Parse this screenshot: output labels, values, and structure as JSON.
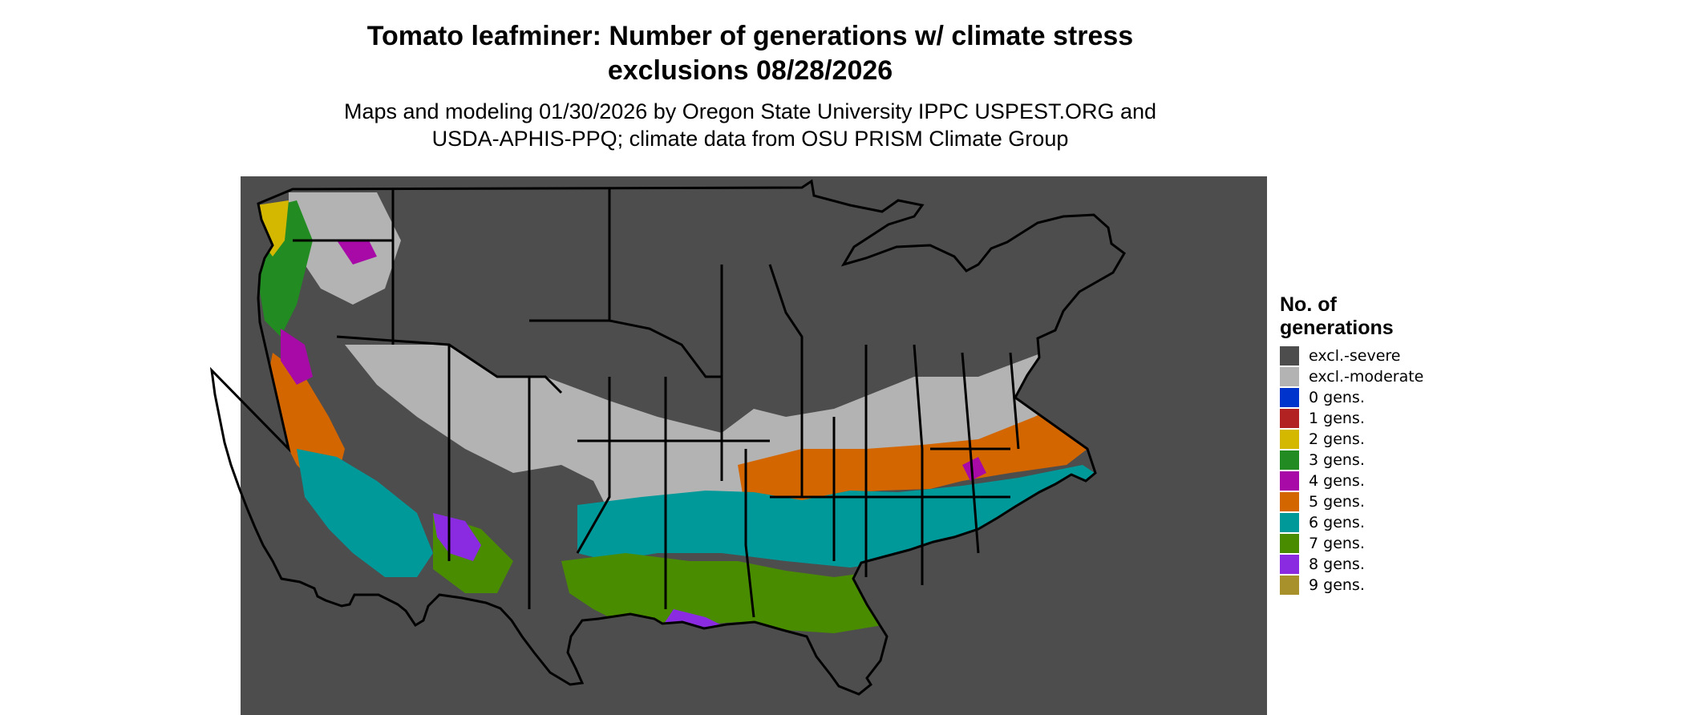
{
  "title": {
    "line1": "Tomato leafminer: Number of generations w/ climate stress",
    "line2": "exclusions 08/28/2026"
  },
  "subtitle": {
    "line1": "Maps and modeling 01/30/2026 by Oregon State University IPPC USPEST.ORG and",
    "line2": "USDA-APHIS-PPQ; climate data from OSU PRISM Climate Group"
  },
  "legend": {
    "title_line1": "No. of",
    "title_line2": "generations",
    "items": [
      {
        "label": "excl.-severe",
        "color": "#4d4d4d"
      },
      {
        "label": "excl.-moderate",
        "color": "#b3b3b3"
      },
      {
        "label": "0 gens.",
        "color": "#0033cc"
      },
      {
        "label": "1 gens.",
        "color": "#b22222"
      },
      {
        "label": "2 gens.",
        "color": "#d4b800"
      },
      {
        "label": "3 gens.",
        "color": "#228b22"
      },
      {
        "label": "4 gens.",
        "color": "#a80aa8"
      },
      {
        "label": "5 gens.",
        "color": "#d46600"
      },
      {
        "label": "6 gens.",
        "color": "#009999"
      },
      {
        "label": "7 gens.",
        "color": "#4a8c00"
      },
      {
        "label": "8 gens.",
        "color": "#8a2be2"
      },
      {
        "label": "9 gens.",
        "color": "#a8902a"
      }
    ]
  }
}
